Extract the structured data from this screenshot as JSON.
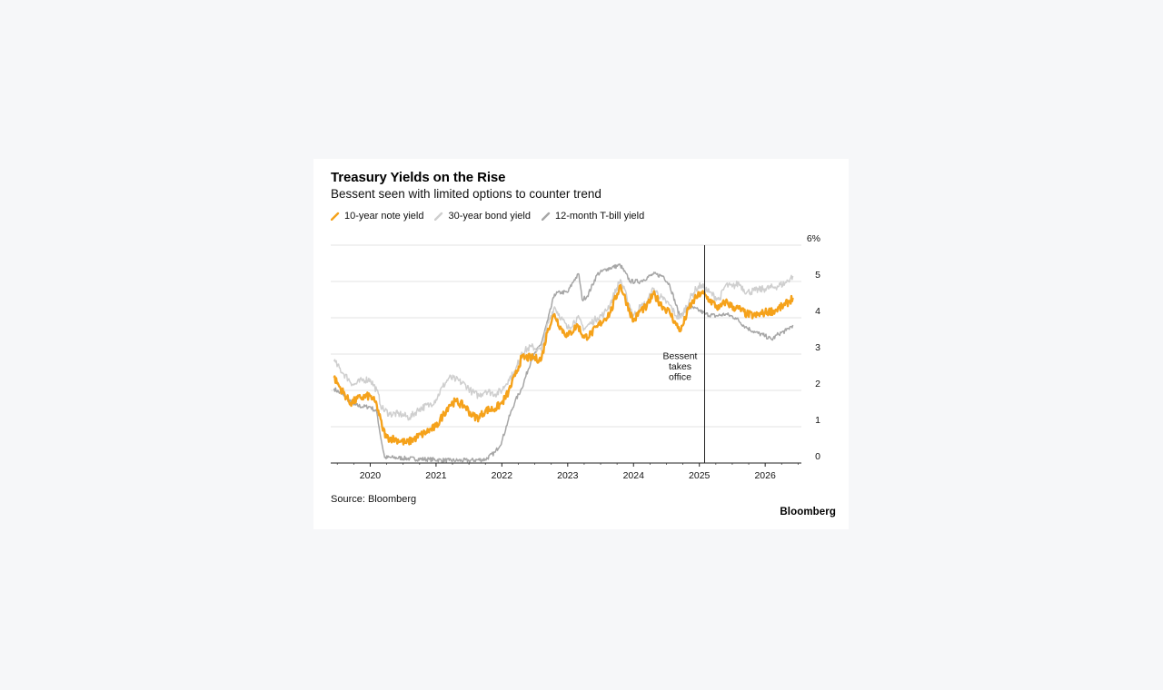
{
  "chart_data": {
    "type": "line",
    "title": "Treasury Yields on the Rise",
    "subtitle": "Bessent seen with limited options to counter trend",
    "x_axis": {
      "range": [
        2019.4,
        2026.55
      ],
      "ticks": [
        2020,
        2021,
        2022,
        2023,
        2024,
        2025,
        2026
      ],
      "tick_labels": [
        "2020",
        "2021",
        "2022",
        "2023",
        "2024",
        "2025",
        "2026"
      ]
    },
    "y_axis": {
      "range": [
        0,
        6
      ],
      "ticks": [
        0,
        1,
        2,
        3,
        4,
        5,
        6
      ],
      "tick_labels": [
        "0",
        "1",
        "2",
        "3",
        "4",
        "5",
        "6%"
      ],
      "position": "right",
      "grid": true
    },
    "legend_placement": "top-left",
    "annotation": {
      "x": 2025.08,
      "lines": [
        "Bessent",
        "takes",
        "office"
      ]
    },
    "series": [
      {
        "name": "10-year note yield",
        "color": "#f5a21b",
        "points": [
          [
            2019.45,
            2.35
          ],
          [
            2019.55,
            2.05
          ],
          [
            2019.7,
            1.65
          ],
          [
            2019.85,
            1.8
          ],
          [
            2020.0,
            1.85
          ],
          [
            2020.1,
            1.6
          ],
          [
            2020.18,
            1.0
          ],
          [
            2020.25,
            0.7
          ],
          [
            2020.4,
            0.65
          ],
          [
            2020.55,
            0.55
          ],
          [
            2020.7,
            0.7
          ],
          [
            2020.85,
            0.85
          ],
          [
            2021.0,
            1.0
          ],
          [
            2021.1,
            1.3
          ],
          [
            2021.2,
            1.6
          ],
          [
            2021.3,
            1.7
          ],
          [
            2021.45,
            1.55
          ],
          [
            2021.55,
            1.3
          ],
          [
            2021.65,
            1.25
          ],
          [
            2021.75,
            1.45
          ],
          [
            2021.9,
            1.5
          ],
          [
            2022.0,
            1.65
          ],
          [
            2022.1,
            1.95
          ],
          [
            2022.2,
            2.4
          ],
          [
            2022.3,
            2.9
          ],
          [
            2022.45,
            2.9
          ],
          [
            2022.6,
            2.85
          ],
          [
            2022.7,
            3.7
          ],
          [
            2022.8,
            4.1
          ],
          [
            2022.9,
            3.7
          ],
          [
            2023.0,
            3.5
          ],
          [
            2023.15,
            3.8
          ],
          [
            2023.25,
            3.45
          ],
          [
            2023.35,
            3.55
          ],
          [
            2023.45,
            3.75
          ],
          [
            2023.55,
            3.95
          ],
          [
            2023.65,
            4.15
          ],
          [
            2023.8,
            4.9
          ],
          [
            2023.9,
            4.4
          ],
          [
            2024.0,
            3.9
          ],
          [
            2024.1,
            4.2
          ],
          [
            2024.2,
            4.3
          ],
          [
            2024.3,
            4.65
          ],
          [
            2024.45,
            4.3
          ],
          [
            2024.55,
            4.15
          ],
          [
            2024.65,
            3.8
          ],
          [
            2024.72,
            3.65
          ],
          [
            2024.85,
            4.3
          ],
          [
            2024.95,
            4.55
          ],
          [
            2025.03,
            4.7
          ],
          [
            2025.15,
            4.5
          ],
          [
            2025.3,
            4.25
          ],
          [
            2025.4,
            4.45
          ],
          [
            2025.5,
            4.3
          ],
          [
            2025.6,
            4.25
          ],
          [
            2025.72,
            4.1
          ],
          [
            2025.85,
            4.05
          ],
          [
            2026.0,
            4.15
          ],
          [
            2026.15,
            4.2
          ],
          [
            2026.3,
            4.35
          ],
          [
            2026.42,
            4.55
          ]
        ]
      },
      {
        "name": "30-year bond yield",
        "color": "#cfcfcf",
        "points": [
          [
            2019.45,
            2.8
          ],
          [
            2019.6,
            2.45
          ],
          [
            2019.75,
            2.15
          ],
          [
            2019.9,
            2.3
          ],
          [
            2020.0,
            2.3
          ],
          [
            2020.1,
            2.0
          ],
          [
            2020.18,
            1.5
          ],
          [
            2020.3,
            1.35
          ],
          [
            2020.45,
            1.35
          ],
          [
            2020.6,
            1.25
          ],
          [
            2020.75,
            1.5
          ],
          [
            2020.9,
            1.6
          ],
          [
            2021.0,
            1.75
          ],
          [
            2021.1,
            2.1
          ],
          [
            2021.2,
            2.35
          ],
          [
            2021.3,
            2.3
          ],
          [
            2021.45,
            2.15
          ],
          [
            2021.55,
            1.95
          ],
          [
            2021.65,
            1.85
          ],
          [
            2021.75,
            2.0
          ],
          [
            2021.9,
            1.9
          ],
          [
            2022.0,
            2.0
          ],
          [
            2022.1,
            2.3
          ],
          [
            2022.2,
            2.5
          ],
          [
            2022.3,
            3.05
          ],
          [
            2022.45,
            3.2
          ],
          [
            2022.6,
            3.1
          ],
          [
            2022.7,
            3.85
          ],
          [
            2022.8,
            4.3
          ],
          [
            2022.9,
            4.0
          ],
          [
            2023.0,
            3.7
          ],
          [
            2023.15,
            4.0
          ],
          [
            2023.25,
            3.7
          ],
          [
            2023.35,
            3.85
          ],
          [
            2023.45,
            4.0
          ],
          [
            2023.55,
            4.1
          ],
          [
            2023.65,
            4.4
          ],
          [
            2023.8,
            5.05
          ],
          [
            2023.9,
            4.55
          ],
          [
            2024.0,
            4.05
          ],
          [
            2024.1,
            4.3
          ],
          [
            2024.2,
            4.4
          ],
          [
            2024.3,
            4.8
          ],
          [
            2024.45,
            4.5
          ],
          [
            2024.55,
            4.35
          ],
          [
            2024.65,
            4.05
          ],
          [
            2024.72,
            4.0
          ],
          [
            2024.85,
            4.5
          ],
          [
            2024.95,
            4.8
          ],
          [
            2025.03,
            4.9
          ],
          [
            2025.15,
            4.7
          ],
          [
            2025.3,
            4.5
          ],
          [
            2025.4,
            4.9
          ],
          [
            2025.5,
            4.85
          ],
          [
            2025.6,
            4.95
          ],
          [
            2025.72,
            4.7
          ],
          [
            2025.85,
            4.75
          ],
          [
            2026.0,
            4.8
          ],
          [
            2026.15,
            4.85
          ],
          [
            2026.3,
            4.95
          ],
          [
            2026.42,
            5.15
          ]
        ]
      },
      {
        "name": "12-month T-bill yield",
        "color": "#a6a6a6",
        "points": [
          [
            2019.45,
            2.05
          ],
          [
            2019.6,
            1.85
          ],
          [
            2019.75,
            1.6
          ],
          [
            2019.9,
            1.55
          ],
          [
            2020.0,
            1.55
          ],
          [
            2020.1,
            1.4
          ],
          [
            2020.17,
            0.6
          ],
          [
            2020.22,
            0.15
          ],
          [
            2020.35,
            0.15
          ],
          [
            2020.6,
            0.12
          ],
          [
            2020.9,
            0.1
          ],
          [
            2021.2,
            0.07
          ],
          [
            2021.5,
            0.07
          ],
          [
            2021.75,
            0.1
          ],
          [
            2021.9,
            0.3
          ],
          [
            2022.0,
            0.6
          ],
          [
            2022.1,
            1.2
          ],
          [
            2022.2,
            1.7
          ],
          [
            2022.3,
            2.05
          ],
          [
            2022.45,
            2.85
          ],
          [
            2022.6,
            3.3
          ],
          [
            2022.7,
            3.95
          ],
          [
            2022.8,
            4.65
          ],
          [
            2022.9,
            4.7
          ],
          [
            2023.0,
            4.7
          ],
          [
            2023.1,
            5.05
          ],
          [
            2023.17,
            5.2
          ],
          [
            2023.22,
            4.5
          ],
          [
            2023.3,
            4.6
          ],
          [
            2023.45,
            5.2
          ],
          [
            2023.6,
            5.35
          ],
          [
            2023.8,
            5.45
          ],
          [
            2023.95,
            5.0
          ],
          [
            2024.1,
            5.0
          ],
          [
            2024.3,
            5.2
          ],
          [
            2024.45,
            5.15
          ],
          [
            2024.55,
            4.9
          ],
          [
            2024.7,
            4.05
          ],
          [
            2024.85,
            4.3
          ],
          [
            2025.0,
            4.2
          ],
          [
            2025.1,
            4.1
          ],
          [
            2025.25,
            4.05
          ],
          [
            2025.4,
            4.1
          ],
          [
            2025.55,
            4.0
          ],
          [
            2025.7,
            3.75
          ],
          [
            2025.85,
            3.6
          ],
          [
            2026.0,
            3.5
          ],
          [
            2026.1,
            3.4
          ],
          [
            2026.2,
            3.55
          ],
          [
            2026.32,
            3.65
          ],
          [
            2026.42,
            3.8
          ]
        ]
      }
    ]
  },
  "source": "Source: Bloomberg",
  "brand": "Bloomberg"
}
